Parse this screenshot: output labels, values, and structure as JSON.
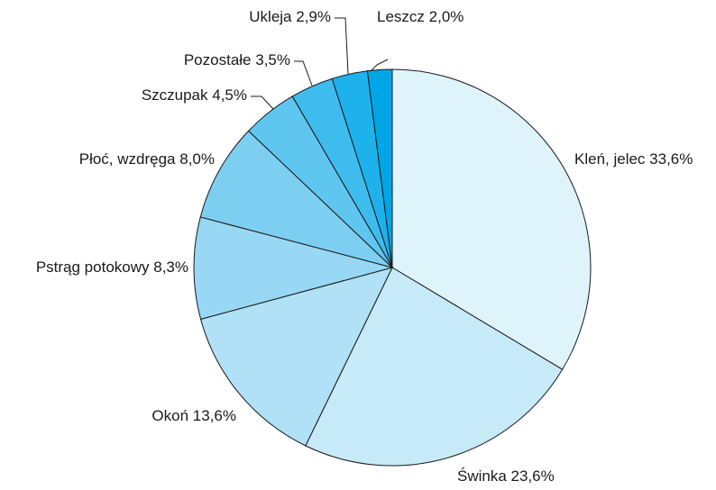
{
  "chart_data": {
    "type": "pie",
    "categories": [
      "Kleń, jelec",
      "Świnka",
      "Okoń",
      "Pstrąg potokowy",
      "Płoć, wzdręga",
      "Szczupak",
      "Pozostałe",
      "Ukleja",
      "Leszcz"
    ],
    "values": [
      33.6,
      23.6,
      13.6,
      8.3,
      8.0,
      4.5,
      3.5,
      2.9,
      2.0
    ],
    "value_labels": [
      "33,6%",
      "23,6%",
      "13,6%",
      "8,3%",
      "8,0%",
      "4,5%",
      "3,5%",
      "2,9%",
      "2,0%"
    ],
    "colors": [
      "#dff3fb",
      "#c7eaf8",
      "#b0e1f6",
      "#98d8f4",
      "#7dcff2",
      "#5fc6f0",
      "#3fbcee",
      "#1eb2ec",
      "#00a6e6"
    ]
  }
}
